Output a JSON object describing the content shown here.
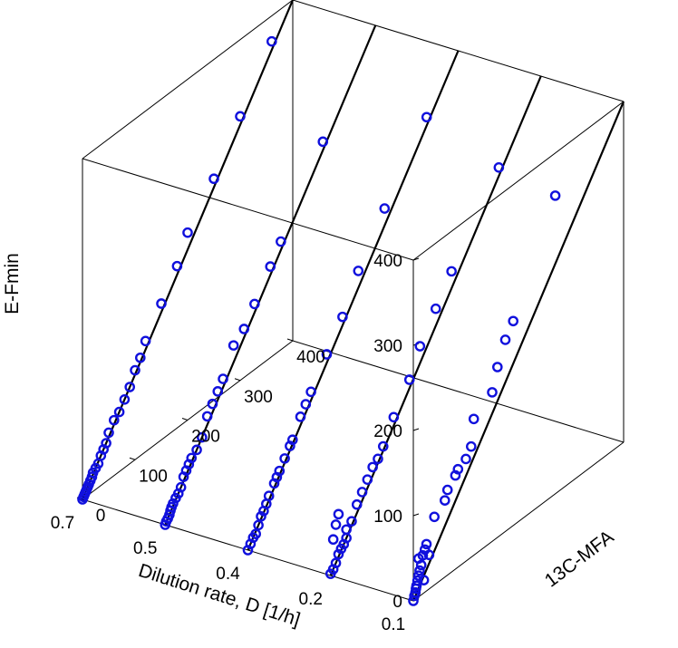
{
  "chart_data": {
    "type": "scatter",
    "projection": "3d",
    "xlabel": "Dilution rate, D [1/h]",
    "ylabel": "13C-MFA",
    "zlabel": "E-Fmin",
    "dilution_slices": [
      "0.7",
      "0.5",
      "0.4",
      "0.2",
      "0.1"
    ],
    "x_tick_labels": [
      "0.7",
      "0.5",
      "0.4",
      "0.2",
      "0.1"
    ],
    "y_ticks": [
      0,
      100,
      200,
      300,
      400
    ],
    "z_ticks": [
      0,
      100,
      200,
      300,
      400
    ],
    "ylim": [
      0,
      400
    ],
    "zlim": [
      0,
      400
    ],
    "grid": false,
    "box": true,
    "marker": "open-circle",
    "colors": {
      "points": "#1010dd",
      "lines": "#000000",
      "box": "#000000"
    },
    "reference_line": "y = z (diagonal line in each dilution-rate slice)",
    "series": [
      {
        "d": "0.7",
        "points": [
          [
            0,
            0
          ],
          [
            2,
            5
          ],
          [
            4,
            8
          ],
          [
            5,
            12
          ],
          [
            6,
            15
          ],
          [
            8,
            20
          ],
          [
            10,
            25
          ],
          [
            12,
            30
          ],
          [
            15,
            35
          ],
          [
            18,
            45
          ],
          [
            22,
            50
          ],
          [
            25,
            55
          ],
          [
            30,
            40
          ],
          [
            20,
            15
          ],
          [
            10,
            45
          ],
          [
            40,
            80
          ],
          [
            60,
            90
          ],
          [
            65,
            100
          ],
          [
            80,
            110
          ],
          [
            85,
            115
          ],
          [
            100,
            120
          ],
          [
            110,
            130
          ],
          [
            115,
            160
          ],
          [
            150,
            175
          ],
          [
            160,
            200
          ],
          [
            175,
            225
          ],
          [
            190,
            240
          ],
          [
            270,
            350
          ]
        ]
      },
      {
        "d": "0.5",
        "points": [
          [
            0,
            2
          ],
          [
            5,
            5
          ],
          [
            10,
            10
          ],
          [
            15,
            18
          ],
          [
            20,
            22
          ],
          [
            25,
            25
          ],
          [
            30,
            30
          ],
          [
            5,
            40
          ],
          [
            10,
            55
          ],
          [
            15,
            65
          ],
          [
            30,
            40
          ],
          [
            40,
            45
          ],
          [
            50,
            60
          ],
          [
            60,
            70
          ],
          [
            70,
            80
          ],
          [
            80,
            90
          ],
          [
            90,
            95
          ],
          [
            100,
            105
          ],
          [
            120,
            130
          ],
          [
            150,
            160
          ],
          [
            170,
            190
          ],
          [
            200,
            220
          ],
          [
            230,
            250
          ],
          [
            320,
            330
          ]
        ]
      },
      {
        "d": "0.4",
        "points": [
          [
            0,
            0
          ],
          [
            5,
            5
          ],
          [
            10,
            10
          ],
          [
            15,
            12
          ],
          [
            20,
            20
          ],
          [
            25,
            28
          ],
          [
            30,
            32
          ],
          [
            35,
            38
          ],
          [
            40,
            45
          ],
          [
            50,
            55
          ],
          [
            55,
            60
          ],
          [
            60,
            65
          ],
          [
            70,
            75
          ],
          [
            80,
            85
          ],
          [
            85,
            90
          ],
          [
            100,
            110
          ],
          [
            110,
            120
          ],
          [
            120,
            130
          ],
          [
            150,
            160
          ],
          [
            180,
            190
          ],
          [
            210,
            230
          ],
          [
            260,
            280
          ],
          [
            340,
            350
          ]
        ]
      },
      {
        "d": "0.2",
        "points": [
          [
            0,
            0
          ],
          [
            2,
            3
          ],
          [
            5,
            5
          ],
          [
            8,
            8
          ],
          [
            10,
            12
          ],
          [
            12,
            15
          ],
          [
            15,
            18
          ],
          [
            20,
            22
          ],
          [
            25,
            25
          ],
          [
            30,
            30
          ],
          [
            35,
            40
          ],
          [
            40,
            45
          ],
          [
            45,
            50
          ],
          [
            50,
            55
          ],
          [
            60,
            60
          ],
          [
            70,
            70
          ],
          [
            80,
            90
          ],
          [
            90,
            100
          ],
          [
            100,
            110
          ],
          [
            110,
            120
          ],
          [
            130,
            150
          ],
          [
            150,
            160
          ],
          [
            170,
            180
          ],
          [
            200,
            210
          ],
          [
            220,
            230
          ],
          [
            300,
            310
          ]
        ]
      },
      {
        "d": "0.1",
        "points": [
          [
            0,
            0
          ],
          [
            2,
            2
          ],
          [
            4,
            4
          ],
          [
            6,
            6
          ],
          [
            8,
            8
          ],
          [
            10,
            10
          ],
          [
            12,
            12
          ],
          [
            15,
            15
          ],
          [
            18,
            18
          ],
          [
            20,
            22
          ],
          [
            25,
            25
          ],
          [
            30,
            28
          ],
          [
            35,
            35
          ],
          [
            40,
            40
          ],
          [
            45,
            45
          ],
          [
            50,
            55
          ],
          [
            60,
            65
          ],
          [
            70,
            70
          ],
          [
            80,
            80
          ],
          [
            90,
            90
          ],
          [
            100,
            105
          ],
          [
            110,
            115
          ],
          [
            120,
            130
          ],
          [
            150,
            160
          ],
          [
            180,
            190
          ],
          [
            200,
            220
          ],
          [
            250,
            260
          ],
          [
            300,
            310
          ],
          [
            360,
            370
          ]
        ]
      }
    ]
  }
}
